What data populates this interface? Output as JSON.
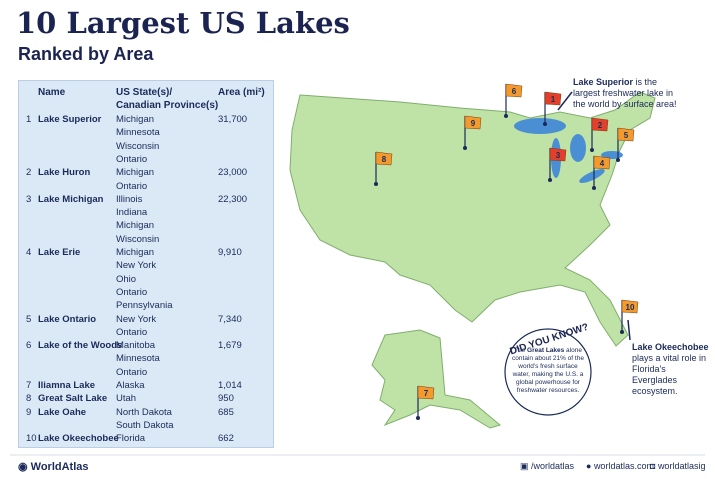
{
  "header": {
    "title": "10 Largest US Lakes",
    "subtitle": "Ranked by Area"
  },
  "table": {
    "headers": {
      "name": "Name",
      "states": [
        "US State(s)/",
        "Canadian Province(s)"
      ],
      "area": "Area (mi²)"
    },
    "rows": [
      {
        "rank": 1,
        "name": "Lake Superior",
        "states": [
          "Michigan",
          "Minnesota",
          "Wisconsin",
          "Ontario"
        ],
        "area": "31,700"
      },
      {
        "rank": 2,
        "name": "Lake Huron",
        "states": [
          "Michigan",
          "Ontario"
        ],
        "area": "23,000"
      },
      {
        "rank": 3,
        "name": "Lake Michigan",
        "states": [
          "Illinois",
          "Indiana",
          "Michigan",
          "Wisconsin"
        ],
        "area": "22,300"
      },
      {
        "rank": 4,
        "name": "Lake Erie",
        "states": [
          "Michigan",
          "New York",
          "Ohio",
          "Ontario",
          "Pennsylvania"
        ],
        "area": "9,910"
      },
      {
        "rank": 5,
        "name": "Lake Ontario",
        "states": [
          "New York",
          "Ontario"
        ],
        "area": "7,340"
      },
      {
        "rank": 6,
        "name": "Lake of the Woods",
        "states": [
          "Manitoba",
          "Minnesota",
          "Ontario"
        ],
        "area": "1,679"
      },
      {
        "rank": 7,
        "name": "Iliamna Lake",
        "states": [
          "Alaska"
        ],
        "area": "1,014"
      },
      {
        "rank": 8,
        "name": "Great Salt Lake",
        "states": [
          "Utah"
        ],
        "area": "950"
      },
      {
        "rank": 9,
        "name": "Lake Oahe",
        "states": [
          "North Dakota",
          "South Dakota"
        ],
        "area": "685"
      },
      {
        "rank": 10,
        "name": "Lake Okeechobee",
        "states": [
          "Florida"
        ],
        "area": "662"
      }
    ]
  },
  "map": {
    "flags": [
      {
        "label": "1",
        "color": "#e2402b"
      },
      {
        "label": "2",
        "color": "#e2402b"
      },
      {
        "label": "3",
        "color": "#e2402b"
      },
      {
        "label": "4",
        "color": "#f29a2e"
      },
      {
        "label": "5",
        "color": "#f29a2e"
      },
      {
        "label": "6",
        "color": "#f29a2e"
      },
      {
        "label": "7",
        "color": "#f29a2e"
      },
      {
        "label": "8",
        "color": "#f29a2e"
      },
      {
        "label": "9",
        "color": "#f29a2e"
      },
      {
        "label": "10",
        "color": "#f29a2e"
      }
    ],
    "callouts": {
      "superior": {
        "bold": "Lake Superior",
        "text": " is the largest freshwater lake in the world by surface area!"
      },
      "okeechobee": {
        "bold": "Lake Okeechobee",
        "text": " plays a vital role in Florida's Everglades ecosystem."
      }
    },
    "did_you_know": {
      "heading": "DID YOU KNOW?",
      "before": "The ",
      "bold": "Great Lakes",
      "after": " alone contain about 21% of the world's fresh surface water, making the U.S. a global powerhouse for freshwater resources."
    }
  },
  "footer": {
    "brand": "WorldAtlas",
    "social": "/worldatlas",
    "site": "worldatlas.com",
    "instagram": "worldatlasig"
  }
}
